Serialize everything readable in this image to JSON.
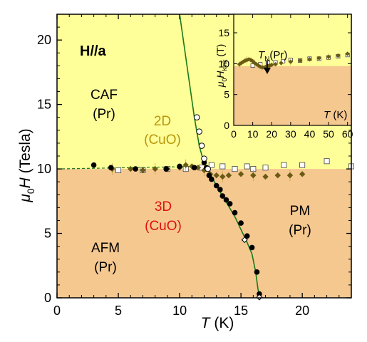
{
  "chart_data": [
    {
      "type": "scatter",
      "panel": "main",
      "xlabel": "T (K)",
      "ylabel": "μ0H (Tesla)",
      "xlim": [
        0,
        24
      ],
      "ylim": [
        0,
        22
      ],
      "xticks": [
        "0",
        "5",
        "10",
        "15",
        "20"
      ],
      "yticks": [
        "0",
        "5",
        "10",
        "15",
        "20"
      ],
      "region_colors": {
        "upper": "#ffff99",
        "lower": "#f5c890"
      },
      "region_boundary_H": 10,
      "annotations": {
        "field_dir": "H//a",
        "caf": "CAF",
        "caf_pr": "(Pr)",
        "two_d": "2D",
        "two_d_cuo": "(CuO)",
        "three_d": "3D",
        "three_d_cuo": "(CuO)",
        "afm": "AFM",
        "afm_pr": "(Pr)",
        "pm": "PM",
        "pm_pr": "(Pr)"
      },
      "annotation_colors": {
        "two_d": "#b8960c",
        "three_d": "#dd1111",
        "default": "#000000"
      },
      "phase_line": {
        "color": "#1a7a1a",
        "x": [
          10.0,
          10.6,
          11.2,
          11.6,
          12.0,
          12.5,
          13.0,
          13.5,
          14.0,
          14.5,
          15.0,
          15.5,
          15.9,
          16.2,
          16.4,
          16.6
        ],
        "y": [
          22,
          18,
          14,
          11.8,
          10.4,
          9.6,
          8.7,
          7.9,
          7.1,
          6.3,
          5.3,
          4.3,
          3.4,
          2.0,
          0.6,
          0
        ]
      },
      "dashed_line": {
        "color": "#1a7a1a",
        "x": [
          0,
          12
        ],
        "y": [
          10.0,
          10.2
        ]
      },
      "series": [
        {
          "marker": "filled-circle",
          "color": "#000000",
          "x": [
            3.0,
            4.4,
            6.4,
            8.9,
            10.0,
            11.2,
            12.0,
            12.2,
            12.4,
            12.6,
            13.0,
            13.3,
            13.5,
            13.8,
            14.1,
            14.5,
            15.0,
            15.5,
            15.9,
            16.3,
            16.5
          ],
          "y": [
            10.3,
            10.1,
            10.0,
            10.0,
            10.2,
            10.1,
            10.5,
            10.1,
            9.5,
            9.2,
            8.7,
            8.4,
            7.9,
            7.6,
            7.3,
            6.6,
            5.8,
            4.8,
            3.9,
            2.0,
            0.3
          ]
        },
        {
          "marker": "open-circle",
          "color": "#000000",
          "x": [
            11.4,
            11.6,
            11.8,
            12.0,
            12.3
          ],
          "y": [
            14.0,
            12.9,
            11.8,
            10.8,
            10.0
          ]
        },
        {
          "marker": "open-diamond",
          "color": "#000000",
          "x": [
            15.3,
            16.5
          ],
          "y": [
            4.5,
            0.05
          ]
        },
        {
          "marker": "filled-diamond",
          "color": "#6b5a14",
          "x": [
            4.5,
            6.0,
            7.0,
            8.0,
            9.0,
            10.0,
            10.5,
            11.0,
            11.5,
            12.0,
            12.5,
            13.0,
            13.5,
            14.0,
            15.0,
            16.0,
            17.0,
            18.0,
            19.0,
            20.0
          ],
          "y": [
            10.0,
            10.0,
            9.9,
            10.0,
            10.0,
            10.1,
            10.3,
            10.2,
            10.1,
            9.9,
            9.6,
            9.5,
            9.4,
            9.5,
            9.6,
            9.5,
            9.4,
            9.5,
            9.5,
            9.6
          ]
        },
        {
          "marker": "open-square",
          "color": "#000000",
          "x": [
            5.0,
            7.0,
            9.0,
            10.5,
            11.8,
            12.6,
            13.5,
            14.5,
            15.5,
            16.0,
            17.0,
            18.5,
            20.0,
            22.0,
            24.0
          ],
          "y": [
            9.9,
            9.9,
            10.0,
            10.0,
            10.1,
            10.3,
            10.2,
            10.0,
            10.2,
            10.0,
            10.1,
            10.3,
            10.3,
            10.6,
            10.2
          ]
        }
      ]
    },
    {
      "type": "scatter",
      "panel": "inset",
      "xlabel": "T (K)",
      "ylabel": "μ0Hkink (T)",
      "xlim": [
        0,
        62
      ],
      "ylim": [
        0,
        18
      ],
      "xticks": [
        "0",
        "10",
        "20",
        "30",
        "40",
        "50",
        "60"
      ],
      "yticks": [
        "0",
        "5",
        "10",
        "15"
      ],
      "region_colors": {
        "upper": "#ffff99",
        "lower": "#f5c890"
      },
      "region_boundary_H": 9.6,
      "annotation": "TN(Pr)",
      "annotation_x": 18,
      "series": [
        {
          "marker": "filled-diamond",
          "color": "#6b5a14",
          "x": [
            3,
            4,
            5,
            6,
            7,
            8,
            9,
            10,
            11,
            12,
            13,
            14,
            15,
            16,
            17,
            18,
            19,
            20,
            22,
            25,
            30,
            35,
            40,
            45,
            50,
            55,
            60
          ],
          "y": [
            9.9,
            10.1,
            10.3,
            10.5,
            10.6,
            10.7,
            10.6,
            10.4,
            10.1,
            9.9,
            9.7,
            9.5,
            9.4,
            9.4,
            9.5,
            9.6,
            9.7,
            9.8,
            9.9,
            10.1,
            10.3,
            10.5,
            10.7,
            10.9,
            11.1,
            11.3,
            11.6
          ]
        },
        {
          "marker": "open-square",
          "color": "#000000",
          "x": [
            10,
            14,
            18,
            22,
            26,
            30,
            35,
            40,
            45,
            50,
            55,
            60
          ],
          "y": [
            9.7,
            9.9,
            10.2,
            10.2,
            10.4,
            10.6,
            10.5,
            10.8,
            10.8,
            11.0,
            11.2,
            11.4
          ]
        }
      ]
    }
  ]
}
